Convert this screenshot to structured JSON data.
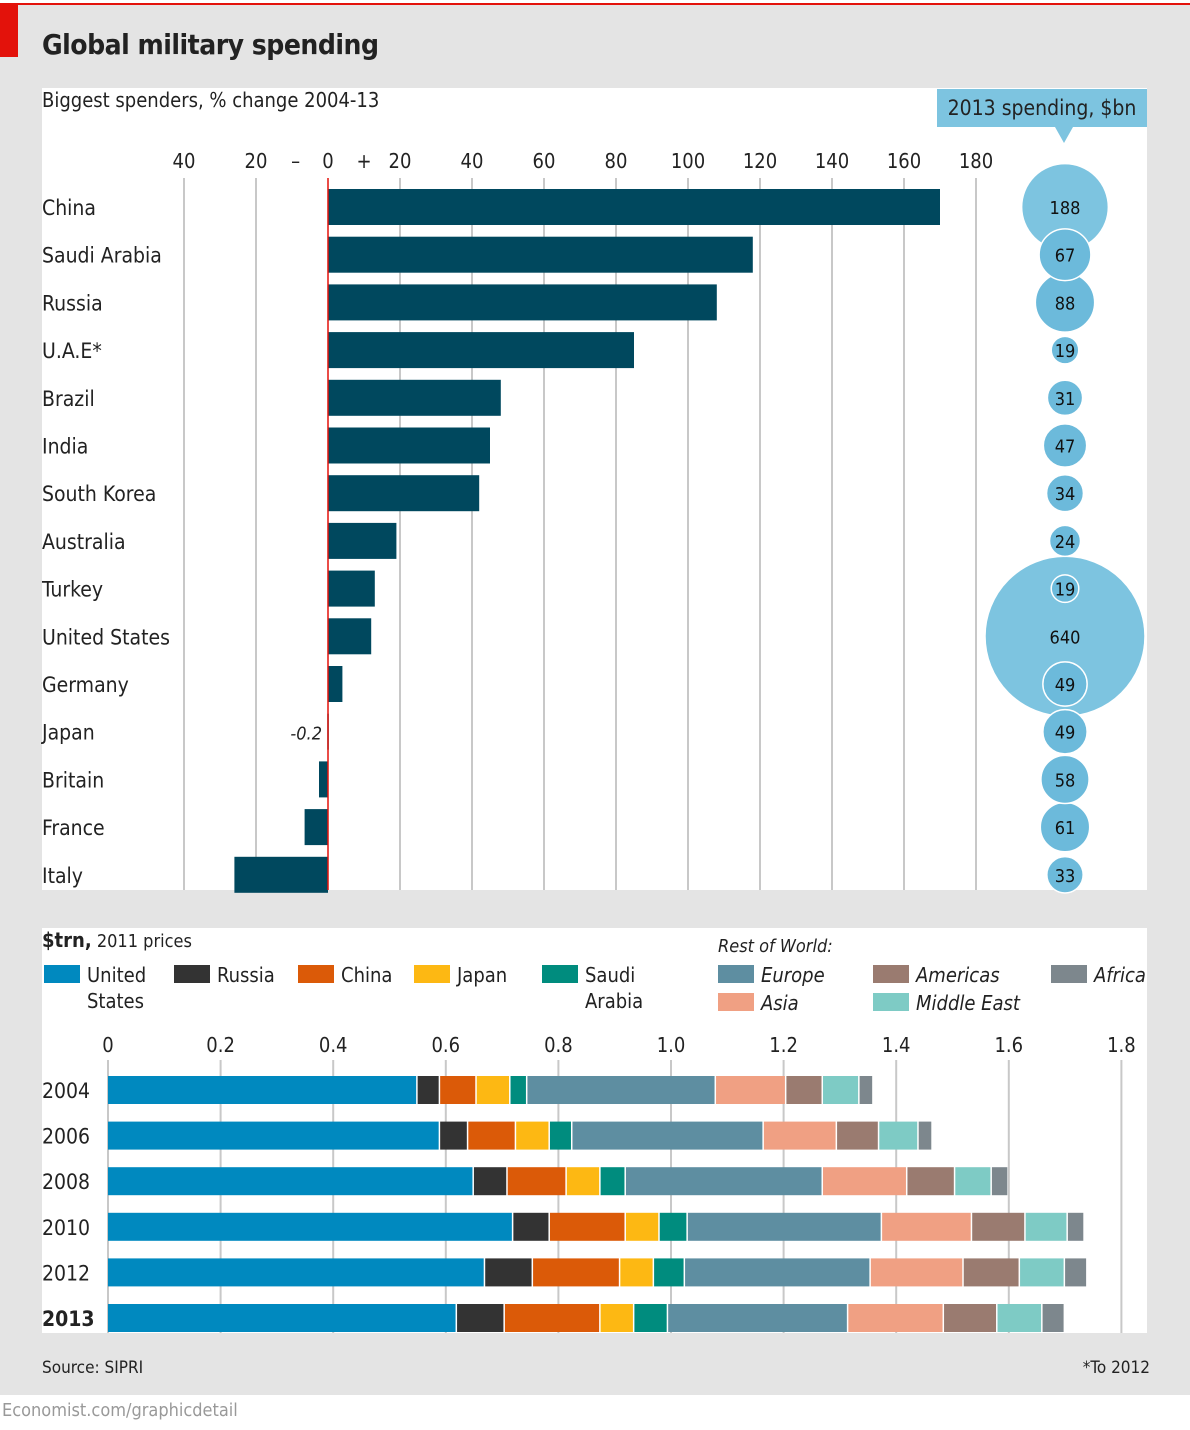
{
  "title": "Global military spending",
  "source": "Source: SIPRI",
  "note": "*To 2012",
  "footer": "Economist.com/graphicdetail",
  "chart_data": [
    {
      "type": "bar",
      "orientation": "horizontal",
      "title": "Biggest spenders, % change 2004-13",
      "xlim": [
        -40,
        180
      ],
      "tick_labels": [
        "40",
        "20",
        "–",
        "0",
        "+",
        "20",
        "40",
        "60",
        "80",
        "100",
        "120",
        "140",
        "160",
        "180"
      ],
      "ticks": [
        -40,
        -20,
        0,
        20,
        40,
        60,
        80,
        100,
        120,
        140,
        160,
        180
      ],
      "categories": [
        "China",
        "Saudi Arabia",
        "Russia",
        "U.A.E*",
        "Brazil",
        "India",
        "South Korea",
        "Australia",
        "Turkey",
        "United States",
        "Germany",
        "Japan",
        "Britain",
        "France",
        "Italy"
      ],
      "values": [
        170,
        118,
        108,
        85,
        48,
        45,
        42,
        19,
        13,
        12,
        4,
        -0.2,
        -2.5,
        -6.5,
        -26
      ],
      "data_labels": {
        "Japan": "-0.2"
      },
      "bar_color": "#00485e",
      "zero_line_color": "#e3120b"
    },
    {
      "type": "bubble",
      "title": "2013 spending, $bn",
      "categories": [
        "China",
        "Saudi Arabia",
        "Russia",
        "U.A.E*",
        "Brazil",
        "India",
        "South Korea",
        "Australia",
        "Turkey",
        "United States",
        "Germany",
        "Japan",
        "Britain",
        "France",
        "Italy"
      ],
      "values": [
        188,
        67,
        88,
        19,
        31,
        47,
        34,
        24,
        19,
        640,
        49,
        49,
        58,
        61,
        33
      ],
      "color": "#7dc4e0"
    },
    {
      "type": "bar",
      "orientation": "horizontal",
      "stacked": true,
      "title": "$trn, 2011 prices",
      "title_bold": "$trn,",
      "title_rest": "2011 prices",
      "xlim": [
        0,
        1.8
      ],
      "ticks": [
        "0",
        "0.2",
        "0.4",
        "0.6",
        "0.8",
        "1.0",
        "1.2",
        "1.4",
        "1.6",
        "1.8"
      ],
      "categories": [
        "2004",
        "2006",
        "2008",
        "2010",
        "2012",
        "2013"
      ],
      "legend_group_label": "Rest of World:",
      "series": [
        {
          "name": "United States",
          "color": "#0089bf",
          "values": [
            0.55,
            0.59,
            0.65,
            0.72,
            0.67,
            0.62
          ]
        },
        {
          "name": "Russia",
          "color": "#333333",
          "values": [
            0.04,
            0.05,
            0.06,
            0.065,
            0.085,
            0.085
          ]
        },
        {
          "name": "China",
          "color": "#db5a08",
          "values": [
            0.065,
            0.085,
            0.105,
            0.135,
            0.155,
            0.17
          ]
        },
        {
          "name": "Japan",
          "color": "#fdb813",
          "values": [
            0.06,
            0.06,
            0.06,
            0.06,
            0.06,
            0.06
          ]
        },
        {
          "name": "Saudi Arabia",
          "color": "#008c7e",
          "values": [
            0.03,
            0.04,
            0.045,
            0.05,
            0.055,
            0.06
          ]
        },
        {
          "name": "Europe",
          "color": "#5e8ea1",
          "values": [
            0.335,
            0.34,
            0.35,
            0.345,
            0.33,
            0.32
          ]
        },
        {
          "name": "Asia",
          "color": "#f0a083",
          "values": [
            0.125,
            0.13,
            0.15,
            0.16,
            0.165,
            0.17
          ]
        },
        {
          "name": "Americas",
          "color": "#9a7b70",
          "values": [
            0.065,
            0.075,
            0.085,
            0.095,
            0.1,
            0.095
          ]
        },
        {
          "name": "Middle East",
          "color": "#7ecbc5",
          "values": [
            0.065,
            0.07,
            0.065,
            0.075,
            0.08,
            0.08
          ]
        },
        {
          "name": "Africa",
          "color": "#7d878d",
          "values": [
            0.025,
            0.025,
            0.03,
            0.03,
            0.04,
            0.04
          ]
        }
      ]
    }
  ]
}
